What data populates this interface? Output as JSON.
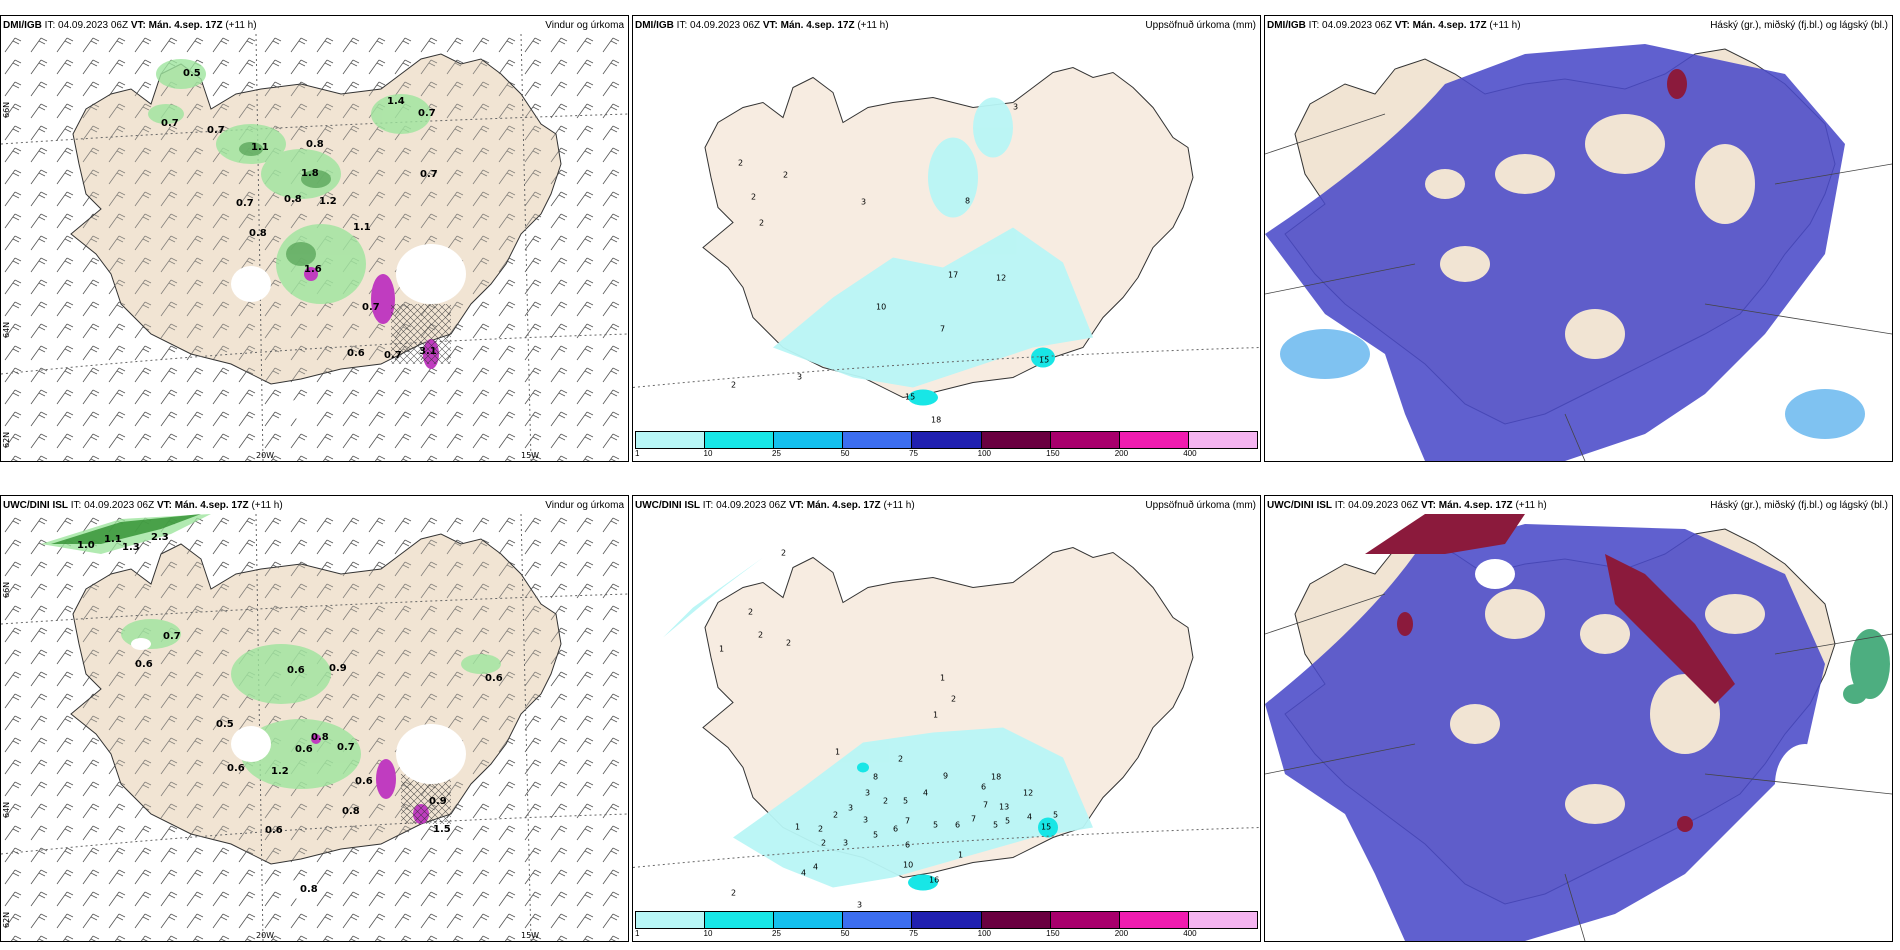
{
  "panels": [
    {
      "model": "DMI/IGB",
      "it_label": "IT:",
      "it": "04.09.2023 06Z",
      "vt_label": "VT:",
      "vt": "Mán. 4.sep. 17Z",
      "lead": "(+11 h)",
      "title": "Vindur og úrkoma"
    },
    {
      "model": "DMI/IGB",
      "it_label": "IT:",
      "it": "04.09.2023 06Z",
      "vt_label": "VT:",
      "vt": "Mán. 4.sep. 17Z",
      "lead": "(+11 h)",
      "title": "Uppsöfnuð úrkoma (mm)"
    },
    {
      "model": "DMI/IGB",
      "it_label": "IT:",
      "it": "04.09.2023 06Z",
      "vt_label": "VT:",
      "vt": "Mán. 4.sep. 17Z",
      "lead": "(+11 h)",
      "title": "Háský (gr.), miðský (fj.bl.) og lágský (bl.)"
    },
    {
      "model": "UWC/DINI ISL",
      "it_label": "IT:",
      "it": "04.09.2023 06Z",
      "vt_label": "VT:",
      "vt": "Mán. 4.sep. 17Z",
      "lead": "(+11 h)",
      "title": "Vindur og úrkoma"
    },
    {
      "model": "UWC/DINI ISL",
      "it_label": "IT:",
      "it": "04.09.2023 06Z",
      "vt_label": "VT:",
      "vt": "Mán. 4.sep. 17Z",
      "lead": "(+11 h)",
      "title": "Uppsöfnuð úrkoma (mm)"
    },
    {
      "model": "UWC/DINI ISL",
      "it_label": "IT:",
      "it": "04.09.2023 06Z",
      "vt_label": "VT:",
      "vt": "Mán. 4.sep. 17Z",
      "lead": "(+11 h)",
      "title": "Háský (gr.), miðský (fj.bl.) og lágský (bl.)"
    }
  ],
  "grid_labels": {
    "lat66": "66N",
    "lat64": "64N",
    "lat62": "62N",
    "lon20": "20W",
    "lon15": "15W"
  },
  "colorbar": {
    "labels": [
      "1",
      "10",
      "25",
      "50",
      "75",
      "100",
      "150",
      "200",
      "400"
    ],
    "colors": [
      "#b8f6f6",
      "#18e6e6",
      "#14c0ee",
      "#3c6ef0",
      "#2020b0",
      "#6a0040",
      "#a8006c",
      "#f01cb0",
      "#f4b4f0"
    ]
  },
  "wind_precip_top": [
    "0.5",
    "0.7",
    "0.7",
    "1.1",
    "0.8",
    "1.8",
    "1.2",
    "0.7",
    "0.8",
    "1.1",
    "0.8",
    "1.6",
    "0.7",
    "1.4",
    "0.7",
    "0.6",
    "0.7",
    "0.7",
    "3.1"
  ],
  "wind_precip_bottom": [
    "1.0",
    "1.1",
    "1.3",
    "2.3",
    "0.7",
    "0.6",
    "0.6",
    "0.9",
    "0.6",
    "0.5",
    "0.8",
    "0.6",
    "1.2",
    "0.7",
    "0.8",
    "0.6",
    "0.6",
    "0.6",
    "0.8",
    "0.9",
    "1.5"
  ],
  "accum_top": [
    "3",
    "2",
    "2",
    "2",
    "2",
    "3",
    "8",
    "17",
    "12",
    "10",
    "7",
    "3",
    "2",
    "15",
    "18",
    "15"
  ],
  "accum_bottom": [
    "2",
    "2",
    "2",
    "2",
    "1",
    "1",
    "1",
    "2",
    "1",
    "2",
    "8",
    "9",
    "18",
    "12",
    "13",
    "4",
    "5",
    "7",
    "6",
    "2",
    "3",
    "3",
    "3",
    "2",
    "2",
    "1",
    "2",
    "3",
    "5",
    "6",
    "7",
    "5",
    "6",
    "7",
    "5",
    "5",
    "4",
    "5",
    "1",
    "4",
    "4",
    "2",
    "3",
    "6",
    "10",
    "4",
    "6",
    "15",
    "16"
  ]
}
